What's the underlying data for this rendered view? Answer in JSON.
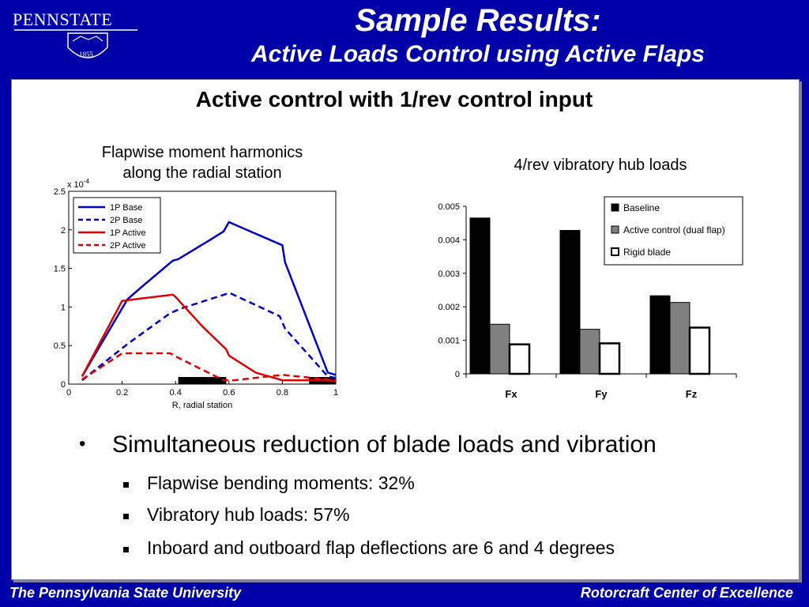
{
  "logo": {
    "wordmark": "PENNSTATE",
    "year": "1855"
  },
  "header": {
    "title": "Sample Results:",
    "subtitle": "Active Loads Control using Active Flaps"
  },
  "heading": "Active control with 1/rev control input",
  "left_chart_title": [
    "Flapwise moment harmonics",
    "along the radial station"
  ],
  "right_chart_title": "4/rev vibratory hub loads",
  "bullets": {
    "main": "Simultaneous reduction of blade loads and vibration",
    "subs": [
      "Flapwise bending moments: 32%",
      "Vibratory hub loads: 57%",
      "Inboard and outboard flap deflections are 6 and 4 degrees"
    ]
  },
  "footer": {
    "left": "The Pennsylvania State University",
    "right": "Rotorcraft Center of Excellence"
  },
  "colors": {
    "background": "#0000a8",
    "panel": "#ffffff",
    "base": "#0000cc",
    "active": "#e00000"
  },
  "chart_data": [
    {
      "type": "line",
      "title": "Flapwise moment harmonics along the radial station",
      "xlabel": "R, radial station",
      "ylabel": "",
      "scale_label": "x 10",
      "scale_exponent": "-4",
      "xlim": [
        0,
        1
      ],
      "ylim": [
        0,
        2.5
      ],
      "x_ticks": [
        0,
        0.2,
        0.4,
        0.6,
        0.8,
        1
      ],
      "x_tick_labels": [
        "0",
        "0.2",
        "0.4",
        "0.6",
        "0.8",
        "1"
      ],
      "y_ticks": [
        0,
        0.5,
        1,
        1.5,
        2,
        2.5
      ],
      "y_tick_labels": [
        "0",
        "0.5",
        "1",
        "1.5",
        "2",
        "2.5"
      ],
      "legend": "top-left",
      "series": [
        {
          "name": "1P Base",
          "color": "#0000cc",
          "dash": false,
          "x": [
            0.05,
            0.22,
            0.28,
            0.39,
            0.41,
            0.52,
            0.58,
            0.6,
            0.62,
            0.8,
            0.81,
            0.97,
            1.0
          ],
          "y": [
            0.1,
            1.1,
            1.28,
            1.6,
            1.62,
            1.85,
            1.98,
            2.1,
            2.07,
            1.8,
            1.58,
            0.15,
            0.12
          ]
        },
        {
          "name": "2P Base",
          "color": "#0000cc",
          "dash": true,
          "x": [
            0.05,
            0.22,
            0.38,
            0.42,
            0.6,
            0.61,
            0.79,
            0.81,
            0.97,
            1.0
          ],
          "y": [
            0.05,
            0.52,
            0.92,
            0.98,
            1.18,
            1.17,
            0.88,
            0.72,
            0.1,
            0.08
          ]
        },
        {
          "name": "1P Active",
          "color": "#e00000",
          "dash": false,
          "x": [
            0.05,
            0.2,
            0.39,
            0.4,
            0.5,
            0.59,
            0.6,
            0.7,
            0.8,
            0.96,
            1.0
          ],
          "y": [
            0.1,
            1.08,
            1.16,
            1.13,
            0.75,
            0.45,
            0.37,
            0.15,
            0.05,
            0.05,
            0.04
          ]
        },
        {
          "name": "2P Active",
          "color": "#e00000",
          "dash": true,
          "x": [
            0.05,
            0.2,
            0.38,
            0.4,
            0.58,
            0.62,
            0.8,
            1.0
          ],
          "y": [
            0.06,
            0.4,
            0.4,
            0.36,
            0.05,
            0.05,
            0.12,
            0.05
          ]
        }
      ],
      "flaps": [
        [
          0.41,
          0.59
        ],
        [
          0.9,
          1.0
        ]
      ]
    },
    {
      "type": "bar",
      "title": "4/rev vibratory hub loads",
      "categories": [
        "Fx",
        "Fy",
        "Fz"
      ],
      "ylim": [
        0,
        0.005
      ],
      "y_ticks": [
        0,
        0.001,
        0.002,
        0.003,
        0.004,
        0.005
      ],
      "y_tick_labels": [
        "0",
        "0.001",
        "0.002",
        "0.003",
        "0.004",
        "0.005"
      ],
      "legend": "top-right",
      "series": [
        {
          "name": "Baseline",
          "color": "#000000",
          "values": [
            0.00465,
            0.00428,
            0.00233
          ]
        },
        {
          "name": "Active control (dual flap)",
          "color": "#808080",
          "values": [
            0.00148,
            0.00133,
            0.00213
          ]
        },
        {
          "name": "Rigid blade",
          "color": "#ffffff",
          "values": [
            0.00088,
            0.00091,
            0.00138
          ]
        }
      ]
    }
  ]
}
